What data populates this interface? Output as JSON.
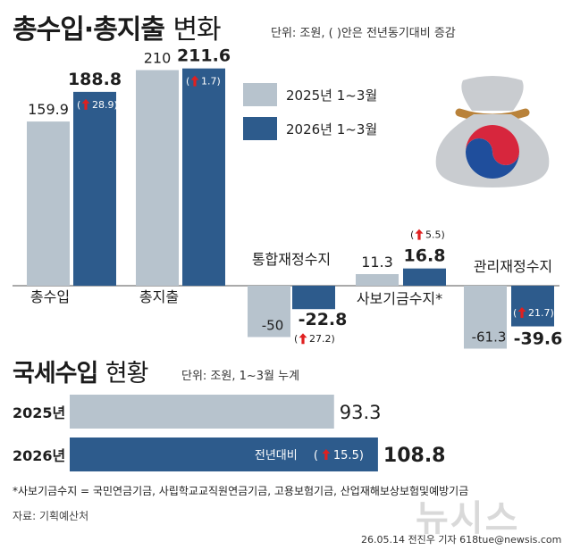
{
  "title": {
    "main": "총수입·총지출",
    "sub": "변화",
    "unit": "단위: 조원, ( )안은 전년동기대비 증감"
  },
  "legend": [
    {
      "label": "2025년 1~3월",
      "color": "#b7c3cd"
    },
    {
      "label": "2026년 1~3월",
      "color": "#2d5b8c"
    }
  ],
  "chart_data": [
    {
      "type": "bar",
      "categories": [
        "총수입",
        "총지출",
        "통합재정수지",
        "사보기금수지*",
        "관리재정수지"
      ],
      "series": [
        {
          "name": "2025년 1~3월",
          "values": [
            159.9,
            210,
            -50,
            11.3,
            -61.3
          ],
          "labels": [
            "159.9",
            "210",
            "-50",
            "11.3",
            "-61.3"
          ]
        },
        {
          "name": "2026년 1~3월",
          "values": [
            188.8,
            211.6,
            -22.8,
            16.8,
            -39.6
          ],
          "labels": [
            "188.8",
            "211.6",
            "-22.8",
            "16.8",
            "-39.6"
          ]
        }
      ],
      "change_labels": [
        "28.9",
        "1.7",
        "27.2",
        "5.5",
        "21.7"
      ],
      "colors": {
        "y2025": "#b7c3cd",
        "y2026": "#2d5b8c",
        "arrow": "#e02020"
      }
    },
    {
      "type": "bar",
      "orientation": "horizontal",
      "categories": [
        "2025년",
        "2026년"
      ],
      "values": [
        93.3,
        108.8
      ],
      "labels": [
        "93.3",
        "108.8"
      ],
      "inner_label": "전년대비",
      "change_label": "15.5",
      "colors": {
        "y2025": "#b7c3cd",
        "y2026": "#2d5b8c"
      }
    }
  ],
  "tax": {
    "title_main": "국세수입",
    "title_sub": "현황",
    "unit": "단위: 조원, 1~3월 누계"
  },
  "footnote": "*사보기금수지 = 국민연금기금, 사립학교교직원연금기금, 고용보험기금, 산업재해보상보험및예방기금",
  "source": "자료: 기획예산처",
  "credit": "26.05.14 전진우 기자 618tue@newsis.com",
  "watermark": "뉴시스"
}
